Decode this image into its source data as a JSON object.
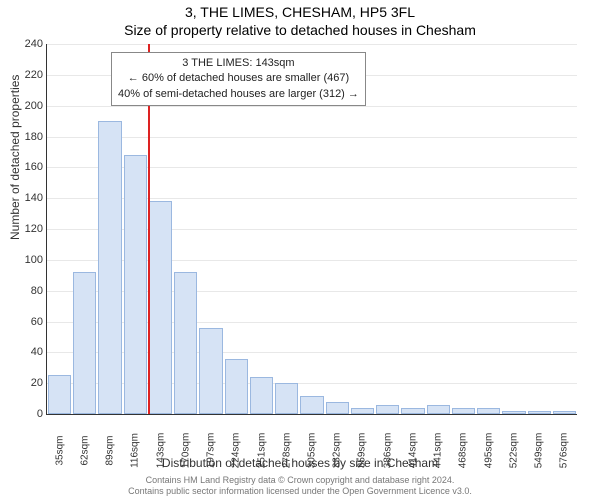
{
  "title_line1": "3, THE LIMES, CHESHAM, HP5 3FL",
  "title_line2": "Size of property relative to detached houses in Chesham",
  "ylabel": "Number of detached properties",
  "xlabel": "Distribution of detached houses by size in Chesham",
  "attribution_line1": "Contains HM Land Registry data © Crown copyright and database right 2024.",
  "attribution_line2": "Contains public sector information licensed under the Open Government Licence v3.0.",
  "chart": {
    "type": "histogram",
    "ylim": [
      0,
      240
    ],
    "ytick_step": 20,
    "bar_fill": "#d6e3f5",
    "bar_border": "#9bb8e0",
    "grid_color": "#e8e8e8",
    "marker_color": "#d22",
    "marker_value": 143,
    "categories": [
      "35sqm",
      "62sqm",
      "89sqm",
      "116sqm",
      "143sqm",
      "170sqm",
      "197sqm",
      "224sqm",
      "251sqm",
      "278sqm",
      "305sqm",
      "332sqm",
      "359sqm",
      "386sqm",
      "414sqm",
      "441sqm",
      "468sqm",
      "495sqm",
      "522sqm",
      "549sqm",
      "576sqm"
    ],
    "values": [
      25,
      92,
      190,
      168,
      138,
      92,
      56,
      36,
      24,
      20,
      12,
      8,
      4,
      6,
      4,
      6,
      4,
      4,
      2,
      2,
      2
    ]
  },
  "legend": {
    "line1": "3 THE LIMES: 143sqm",
    "line2": "← 60% of detached houses are smaller (467)",
    "line3": "40% of semi-detached houses are larger (312) →"
  }
}
